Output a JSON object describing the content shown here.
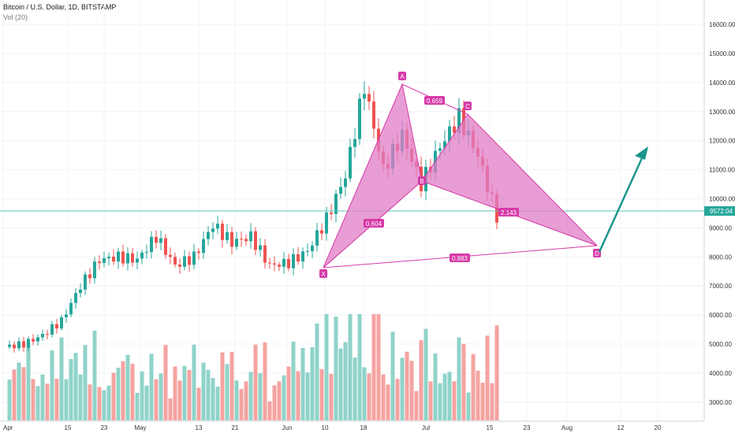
{
  "header": {
    "symbol_title": "Bitcoin / U.S. Dollar, 1D, BITSTAMP",
    "volume_label": "Vol (20)"
  },
  "price_axis": {
    "labels": [
      "16000.00",
      "15000.00",
      "14000.00",
      "13000.00",
      "12000.00",
      "11000.00",
      "10000.00",
      "9000.00",
      "8000.00",
      "7000.00",
      "6000.00",
      "5000.00",
      "4000.00",
      "3000.00"
    ],
    "current_price": "9572.04"
  },
  "time_axis": {
    "labels": [
      "Apr",
      "15",
      "23",
      "May",
      "13",
      "21",
      "Jun",
      "10",
      "18",
      "Jul",
      "15",
      "23",
      "Aug",
      "12",
      "20"
    ]
  },
  "pattern": {
    "points": [
      "X",
      "A",
      "B",
      "C",
      "D"
    ],
    "ratios": {
      "xa_ab": "0.604",
      "ab_bc": "0.659",
      "bc_cd": "2.143",
      "xa_ad": "0.883"
    }
  },
  "colors": {
    "up": "#26a69a",
    "down": "#ef5350",
    "pattern": "#d63aa8",
    "arrow": "#1c968c",
    "price_line": "#5bc3bd"
  },
  "chart_data": {
    "type": "candlestick",
    "date_range": [
      "2019-03-31",
      "2019-07-16"
    ],
    "price_range": [
      2500,
      16500
    ],
    "note_price_path": [
      4900,
      5000,
      5300,
      5800,
      7000,
      7900,
      8000,
      7900,
      8700,
      7700,
      8000,
      9100,
      8500,
      8700,
      7700,
      7800,
      8200,
      9300,
      10800,
      13900,
      11000,
      12200,
      10500,
      11800,
      12800,
      11500,
      9400
    ],
    "harmonic_pattern": {
      "X": 7550,
      "A": 13950,
      "B": 10100,
      "C": 12900,
      "D": 8350,
      "ratios": {
        "XA_AB": 0.604,
        "AB_BC": 0.659,
        "BC_CD": 2.143,
        "XA_AD": 0.883
      }
    }
  }
}
